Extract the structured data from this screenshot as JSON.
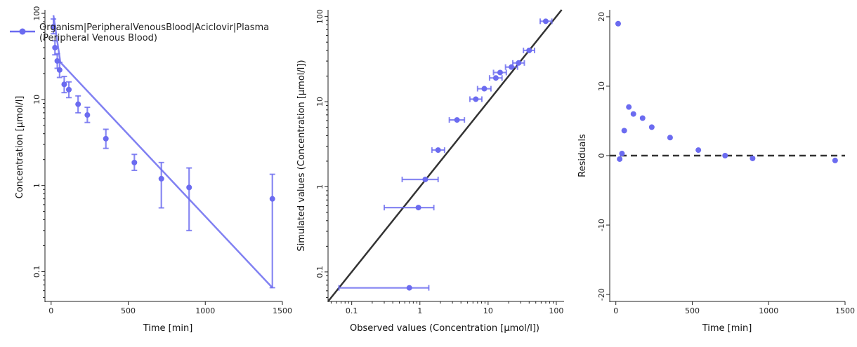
{
  "colors": {
    "series": "#6b6bf0",
    "identity": "#333333",
    "axis": "#222222"
  },
  "chart_data": [
    {
      "type": "scatter",
      "panel": "time-profile",
      "xlabel": "Time [min]",
      "ylabel": "Concentration [µmol/l]",
      "xlim": [
        -40,
        1500
      ],
      "ylim": [
        0.045,
        110
      ],
      "yscale": "log",
      "xticks": [
        0,
        500,
        1000,
        1500
      ],
      "yticks": [
        0.1,
        1,
        10,
        100
      ],
      "legend": {
        "position": "top-left",
        "entries": [
          "Organism|PeripheralVenousBlood|Aciclovir|Plasma",
          "(Peripheral Venous Blood)"
        ]
      },
      "observed": [
        {
          "x": 15,
          "y": 70,
          "lo": 58,
          "hi": 86
        },
        {
          "x": 25,
          "y": 40,
          "lo": 33,
          "hi": 48
        },
        {
          "x": 40,
          "y": 28,
          "lo": 23,
          "hi": 34
        },
        {
          "x": 55,
          "y": 22,
          "lo": 18,
          "hi": 27
        },
        {
          "x": 85,
          "y": 15,
          "lo": 12,
          "hi": 18.5
        },
        {
          "x": 115,
          "y": 13,
          "lo": 10.5,
          "hi": 16
        },
        {
          "x": 175,
          "y": 8.8,
          "lo": 7,
          "hi": 11
        },
        {
          "x": 235,
          "y": 6.6,
          "lo": 5.4,
          "hi": 8.1
        },
        {
          "x": 355,
          "y": 3.5,
          "lo": 2.7,
          "hi": 4.5
        },
        {
          "x": 540,
          "y": 1.85,
          "lo": 1.5,
          "hi": 2.3
        },
        {
          "x": 715,
          "y": 1.2,
          "lo": 0.55,
          "hi": 1.85
        },
        {
          "x": 895,
          "y": 0.95,
          "lo": 0.3,
          "hi": 1.6
        },
        {
          "x": 1435,
          "y": 0.7,
          "lo": 0.065,
          "hi": 1.35
        }
      ],
      "simulated": {
        "x": [
          15,
          60,
          1435
        ],
        "y": [
          95,
          27,
          0.065
        ]
      }
    },
    {
      "type": "scatter",
      "panel": "predicted-vs-observed",
      "xlabel": "Observed values (Concentration [µmol/l])",
      "ylabel": "Simulated values (Concentration [µmol/l])",
      "xscale": "log",
      "yscale": "log",
      "xlim": [
        0.045,
        130
      ],
      "ylim": [
        0.045,
        120
      ],
      "xticks": [
        0.1,
        1,
        10,
        100
      ],
      "yticks": [
        0.1,
        1,
        10,
        100
      ],
      "identity_line": true,
      "points": [
        {
          "x": 0.7,
          "y": 0.065,
          "xlo": 0.065,
          "xhi": 1.35
        },
        {
          "x": 0.95,
          "y": 0.57,
          "xlo": 0.3,
          "xhi": 1.6
        },
        {
          "x": 1.2,
          "y": 1.22,
          "xlo": 0.55,
          "xhi": 1.85
        },
        {
          "x": 1.85,
          "y": 2.7,
          "xlo": 1.5,
          "xhi": 2.3
        },
        {
          "x": 3.5,
          "y": 6.1,
          "xlo": 2.7,
          "xhi": 4.5
        },
        {
          "x": 6.6,
          "y": 10.7,
          "xlo": 5.4,
          "xhi": 8.1
        },
        {
          "x": 8.8,
          "y": 14.2,
          "xlo": 7,
          "xhi": 11
        },
        {
          "x": 13,
          "y": 19,
          "xlo": 10.5,
          "xhi": 16
        },
        {
          "x": 15,
          "y": 22,
          "xlo": 12,
          "xhi": 18.5
        },
        {
          "x": 22,
          "y": 25.5,
          "xlo": 18,
          "xhi": 27
        },
        {
          "x": 28,
          "y": 28.5,
          "xlo": 23,
          "xhi": 34
        },
        {
          "x": 40,
          "y": 40,
          "xlo": 33,
          "xhi": 48
        },
        {
          "x": 70,
          "y": 88,
          "xlo": 58,
          "xhi": 86
        }
      ]
    },
    {
      "type": "scatter",
      "panel": "residuals-vs-time",
      "xlabel": "Time [min]",
      "ylabel": "Residuals",
      "xlim": [
        -40,
        1500
      ],
      "ylim": [
        -21,
        21
      ],
      "xticks": [
        0,
        500,
        1000,
        1500
      ],
      "yticks": [
        -20,
        -10,
        0,
        10,
        20
      ],
      "zero_line": true,
      "points": [
        {
          "x": 15,
          "y": 19
        },
        {
          "x": 25,
          "y": -0.5
        },
        {
          "x": 40,
          "y": 0.3
        },
        {
          "x": 55,
          "y": 3.6
        },
        {
          "x": 85,
          "y": 7
        },
        {
          "x": 115,
          "y": 6
        },
        {
          "x": 175,
          "y": 5.4
        },
        {
          "x": 235,
          "y": 4.1
        },
        {
          "x": 355,
          "y": 2.6
        },
        {
          "x": 540,
          "y": 0.8
        },
        {
          "x": 715,
          "y": 0
        },
        {
          "x": 895,
          "y": -0.4
        },
        {
          "x": 1435,
          "y": -0.7
        }
      ]
    }
  ]
}
